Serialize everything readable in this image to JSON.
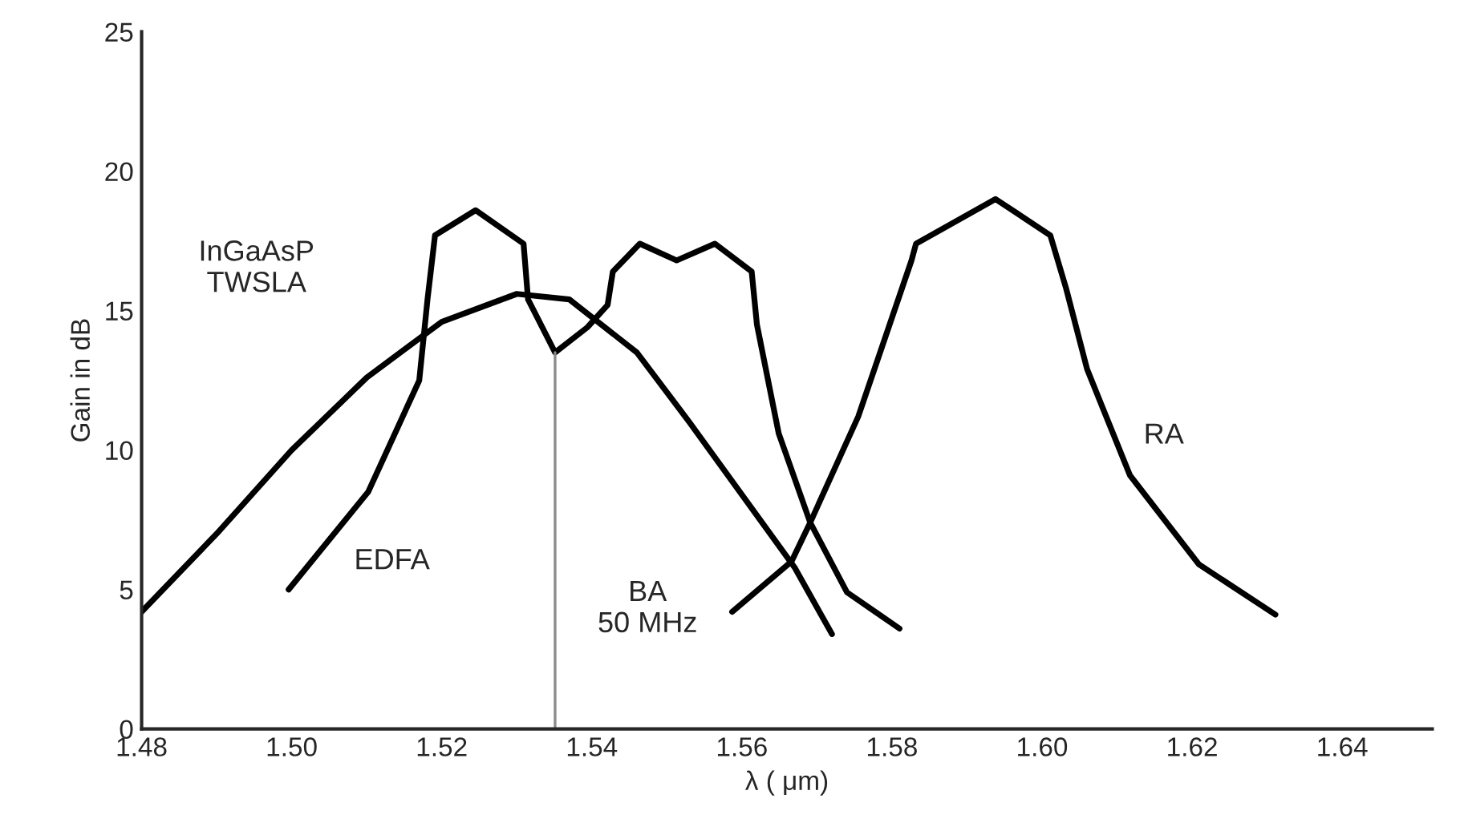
{
  "chart_data": {
    "type": "line",
    "xlabel": "λ ( μm)",
    "ylabel": "Gain in dB",
    "xlim": [
      1.48,
      1.652
    ],
    "ylim": [
      0,
      25
    ],
    "xticks": [
      {
        "value": 1.48,
        "label": "1.48"
      },
      {
        "value": 1.5,
        "label": "1.50"
      },
      {
        "value": 1.52,
        "label": "1.52"
      },
      {
        "value": 1.54,
        "label": "1.54"
      },
      {
        "value": 1.56,
        "label": "1.56"
      },
      {
        "value": 1.58,
        "label": "1.58"
      },
      {
        "value": 1.6,
        "label": "1.60"
      },
      {
        "value": 1.62,
        "label": "1.62"
      },
      {
        "value": 1.64,
        "label": "1.64"
      }
    ],
    "yticks": [
      0,
      5,
      10,
      15,
      20,
      25
    ],
    "grid": false,
    "marker": "none",
    "line_style": "solid",
    "series": [
      {
        "color": "#000000",
        "x": [
          1.48,
          1.49,
          1.5,
          1.51,
          1.52,
          1.53,
          1.537,
          1.546,
          1.553,
          1.56,
          1.567,
          1.572
        ],
        "values": [
          4.2,
          7.0,
          10.0,
          12.6,
          14.6,
          15.6,
          15.4,
          13.5,
          11.0,
          8.4,
          5.8,
          3.4
        ]
      },
      {
        "color": "#000000",
        "x": [
          1.4996,
          1.5102,
          1.517,
          1.5181,
          1.5191,
          1.5245,
          1.5309,
          1.5315,
          1.5351,
          1.5394,
          1.5421,
          1.5428,
          1.5464,
          1.5513,
          1.5564,
          1.5613,
          1.562,
          1.5649,
          1.5691,
          1.574,
          1.581
        ],
        "values": [
          5.0,
          8.5,
          12.5,
          15.4,
          17.7,
          18.6,
          17.4,
          15.4,
          13.5,
          14.4,
          15.2,
          16.4,
          17.4,
          16.8,
          17.4,
          16.4,
          14.5,
          10.6,
          7.4,
          4.9,
          3.6
        ]
      },
      {
        "color": "#000000",
        "x": [
          1.5587,
          1.5666,
          1.5691,
          1.5755,
          1.5826,
          1.5832,
          1.5938,
          1.6011,
          1.6032,
          1.606,
          1.6117,
          1.6209,
          1.6311
        ],
        "values": [
          4.2,
          6.0,
          7.4,
          11.2,
          16.8,
          17.4,
          19.0,
          17.7,
          15.8,
          12.9,
          9.1,
          5.9,
          4.1
        ]
      },
      {
        "color": "#8c8c8c",
        "x": [
          1.5351,
          1.5351
        ],
        "values": [
          0,
          13.5
        ]
      }
    ],
    "annotations": [
      "InGaAsP\nTWSLA",
      "EDFA",
      "BA\n50 MHz",
      "RA"
    ]
  }
}
